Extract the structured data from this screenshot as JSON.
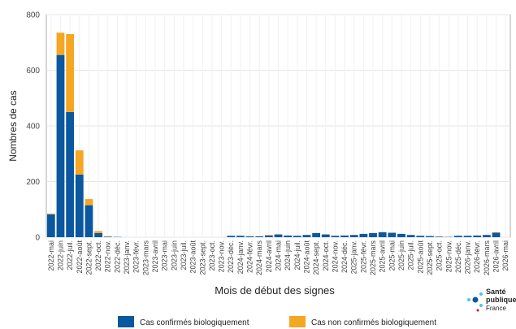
{
  "chart_data": {
    "type": "bar",
    "stacked": true,
    "x_label": "Mois de début des signes",
    "y_label": "Nombres de cas",
    "categories": [
      "2022-mai",
      "2022-juin",
      "2022-juil.",
      "2022-août",
      "2022-sept.",
      "2022-oct.",
      "2022-nov.",
      "2022-déc.",
      "2023-janv.",
      "2023-févr.",
      "2023-mars",
      "2023-avril",
      "2023-mai",
      "2023-juin",
      "2023-juil.",
      "2023-août",
      "2023-sept.",
      "2023-oct.",
      "2023-nov.",
      "2023-déc.",
      "2024-janv.",
      "2024-févr.",
      "2024-mars",
      "2024-avril",
      "2024-mai",
      "2024-juin",
      "2024-juil.",
      "2024-août",
      "2024-sept.",
      "2024-oct.",
      "2024-nov.",
      "2024-déc.",
      "2025-janv.",
      "2025-févr.",
      "2025-mars",
      "2025-avril",
      "2025-mai",
      "2025-juin",
      "2025-juil.",
      "2025-août",
      "2025-sept.",
      "2025-oct.",
      "2025-nov.",
      "2025-déc.",
      "2026-janv.",
      "2026-févr.",
      "2026-mars",
      "2026-avril",
      "2026-mai"
    ],
    "series": [
      {
        "name": "Cas confirmés biologiquement",
        "color": "#0b57a0",
        "values": [
          82,
          655,
          450,
          225,
          115,
          15,
          2,
          1,
          0,
          0,
          0,
          0,
          0,
          0,
          0,
          0,
          0,
          0,
          0,
          5,
          5,
          3,
          3,
          6,
          10,
          6,
          5,
          8,
          15,
          10,
          5,
          6,
          8,
          12,
          15,
          18,
          16,
          12,
          8,
          5,
          4,
          2,
          1,
          5,
          5,
          6,
          8,
          16,
          0
        ]
      },
      {
        "name": "Cas non confirmés biologiquement",
        "color": "#f5a623",
        "values": [
          3,
          80,
          280,
          87,
          22,
          7,
          1,
          0,
          0,
          0,
          0,
          0,
          0,
          0,
          0,
          0,
          0,
          0,
          0,
          0,
          0,
          0,
          0,
          2,
          0,
          0,
          0,
          0,
          0,
          0,
          0,
          0,
          0,
          0,
          0,
          0,
          0,
          0,
          0,
          0,
          0,
          0,
          0,
          0,
          0,
          0,
          0,
          2,
          0
        ]
      }
    ],
    "ylim": [
      0,
      800
    ],
    "yticks": [
      0,
      200,
      400,
      600,
      800
    ],
    "grid": true,
    "logo": {
      "line1": "Santé",
      "line2": "publique",
      "line3": "France"
    }
  }
}
